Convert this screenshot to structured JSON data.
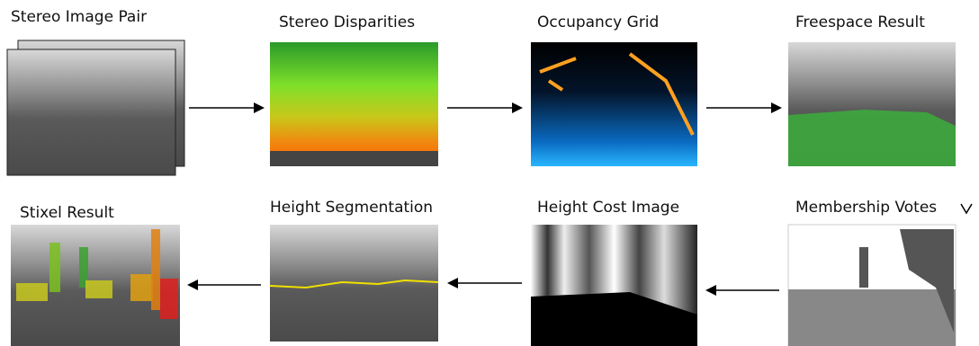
{
  "nodes": [
    {
      "label": "Stereo Image Pair"
    },
    {
      "label": "Stereo Disparities"
    },
    {
      "label": "Occupancy Grid"
    },
    {
      "label": "Freespace Result"
    },
    {
      "label": "Membership Votes"
    },
    {
      "label": "Height Cost Image"
    },
    {
      "label": "Height Segmentation"
    },
    {
      "label": "Stixel Result"
    }
  ]
}
